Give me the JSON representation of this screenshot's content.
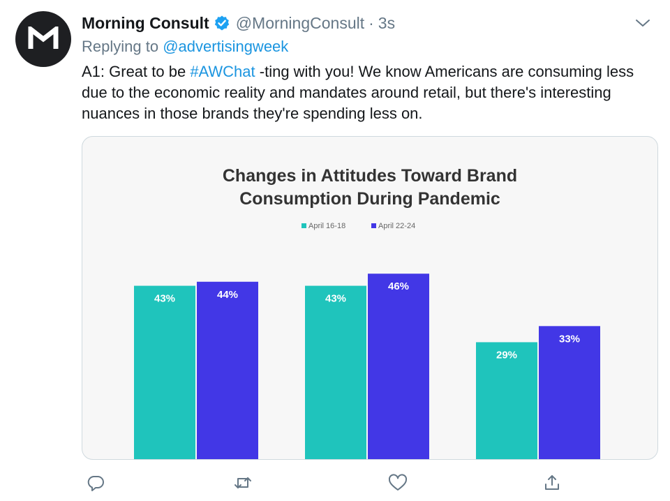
{
  "tweet": {
    "display_name": "Morning Consult",
    "handle": "@MorningConsult",
    "separator": "·",
    "time": "3s",
    "replying_prefix": "Replying to",
    "replying_to": "@advertisingweek",
    "text_part1": "A1: Great to be ",
    "hashtag": "#AWChat",
    "text_part2": " -ting with you! We know Americans are consuming less due to the economic reality and mandates around retail, but there's interesting nuances in those brands they're spending less on."
  },
  "icons": {
    "avatar": "morning-consult-logo",
    "verified": "verified-badge-icon",
    "caret": "chevron-down-icon",
    "reply": "reply-icon",
    "retweet": "retweet-icon",
    "like": "heart-icon",
    "share": "share-icon"
  },
  "colors": {
    "link": "#1b95e0",
    "verified": "#1da1f2",
    "series1": "#1fc4bc",
    "series2": "#4237e6"
  },
  "chart_data": {
    "type": "bar",
    "title": "Changes in Attitudes Toward Brand Consumption During Pandemic",
    "title_lines": [
      "Changes in Attitudes Toward Brand",
      "Consumption During Pandemic"
    ],
    "categories": [
      "",
      "",
      ""
    ],
    "series": [
      {
        "name": "April 16-18",
        "values": [
          43,
          43,
          29
        ],
        "labels": [
          "43%",
          "43%",
          "29%"
        ]
      },
      {
        "name": "April 22-24",
        "values": [
          44,
          46,
          33
        ],
        "labels": [
          "44%",
          "46%",
          "33%"
        ]
      }
    ],
    "ylim": [
      0,
      54
    ],
    "legend": "top-center",
    "grid": false
  }
}
